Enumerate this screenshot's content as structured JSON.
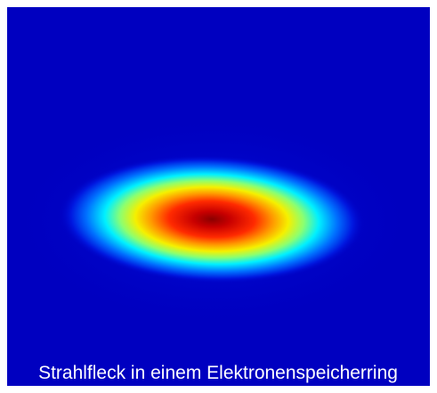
{
  "caption": "Strahlfleck in einem Elektronenspeicherring"
}
